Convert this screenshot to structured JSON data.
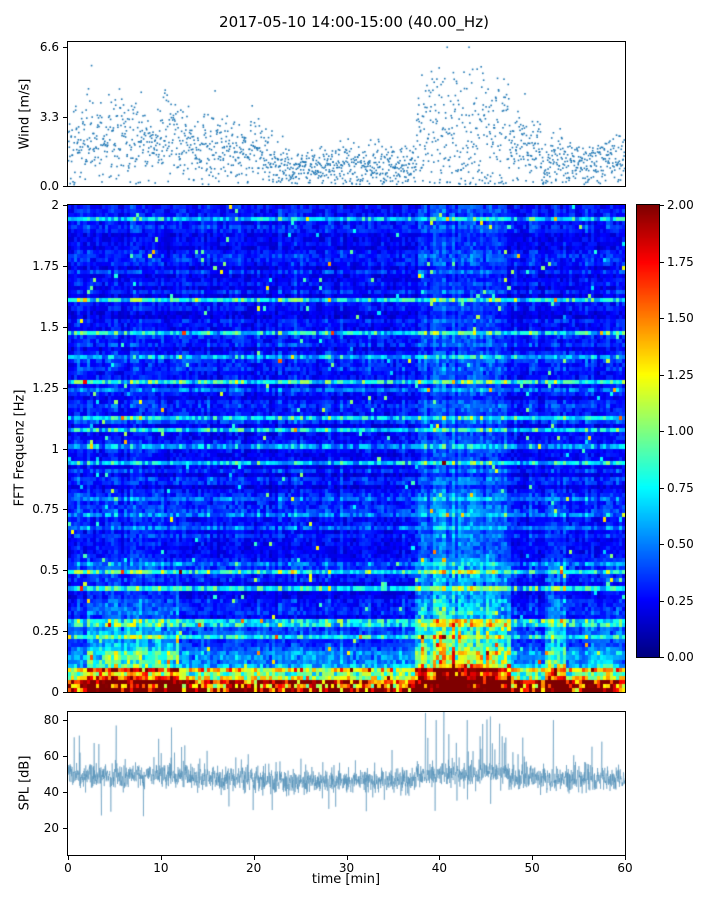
{
  "title": "2017-05-10 14:00-15:00 (40.00_Hz)",
  "figure": {
    "background": "#ffffff",
    "font_color": "#000000"
  },
  "chart_data": [
    {
      "type": "scatter",
      "id": "wind",
      "ylabel": "Wind [m/s]",
      "xlim": [
        0,
        60
      ],
      "ylim": [
        0,
        6.85
      ],
      "yticks": [
        0.0,
        3.3,
        6.6
      ],
      "ytick_labels": [
        "0.0",
        "3.3",
        "6.6"
      ],
      "marker_color": "#1f77b4",
      "marker_size": 1.6,
      "n_points": 1750,
      "seed": 7,
      "peak_time": 43.2,
      "peak_value": 6.6,
      "segments": [
        {
          "t0": 0,
          "t1": 13,
          "mean": 2.2,
          "spread": 1.0
        },
        {
          "t0": 13,
          "t1": 22,
          "mean": 1.6,
          "spread": 0.85
        },
        {
          "t0": 22,
          "t1": 37.5,
          "mean": 0.95,
          "spread": 0.5
        },
        {
          "t0": 37.5,
          "t1": 47.5,
          "mean": 2.6,
          "spread": 1.6
        },
        {
          "t0": 47.5,
          "t1": 51,
          "mean": 1.9,
          "spread": 0.9
        },
        {
          "t0": 51,
          "t1": 60,
          "mean": 1.15,
          "spread": 0.6
        }
      ]
    },
    {
      "type": "heatmap",
      "id": "spectrogram",
      "ylabel": "FFT Frequenz [Hz]",
      "xlim": [
        0,
        60
      ],
      "ylim": [
        0,
        2
      ],
      "yticks": [
        0,
        0.25,
        0.5,
        0.75,
        1,
        1.25,
        1.5,
        1.75,
        2
      ],
      "ytick_labels": [
        "0",
        "0.25",
        "0.5",
        "0.75",
        "1",
        "1.25",
        "1.5",
        "1.75",
        "2"
      ],
      "colormap": "jet",
      "vmin": 0,
      "vmax": 2,
      "grid": {
        "nx": 180,
        "ny": 120
      },
      "seed": 11,
      "background_level": [
        0.17,
        0.37
      ],
      "streak_probability": 0.16,
      "low_freq_boost": {
        "amplitude": 2.0,
        "freq_scale": 0.07
      },
      "events": [
        {
          "t0": 2,
          "t1": 12,
          "strength": 0.85,
          "freq_scale": 0.22
        },
        {
          "t0": 37.5,
          "t1": 47.5,
          "strength": 1.45,
          "freq_scale": 0.28
        },
        {
          "t0": 51.5,
          "t1": 53.5,
          "strength": 0.8,
          "freq_scale": 0.3
        },
        {
          "t0": 56,
          "t1": 59.5,
          "strength": 0.45,
          "freq_scale": 0.15
        }
      ]
    },
    {
      "type": "line",
      "id": "spl",
      "ylabel": "SPL [dB]",
      "xlabel": "time [min]",
      "xlim": [
        0,
        60
      ],
      "ylim": [
        5,
        84.5
      ],
      "yticks": [
        20,
        40,
        60,
        80
      ],
      "ytick_labels": [
        "20",
        "40",
        "60",
        "80"
      ],
      "xticks": [
        0,
        10,
        20,
        30,
        40,
        50,
        60
      ],
      "xtick_labels": [
        "0",
        "10",
        "20",
        "30",
        "40",
        "50",
        "60"
      ],
      "line_color": "#4a8ab5",
      "line_alpha": 0.75,
      "baseline": 46,
      "noise": 3.2,
      "n_points": 2600,
      "seed": 23,
      "spikes": [
        {
          "t": 5.2,
          "value": 77
        },
        {
          "t": 38.5,
          "value": 84
        },
        {
          "t": 40.5,
          "value": 85
        },
        {
          "t": 43.0,
          "value": 80
        },
        {
          "t": 45.5,
          "value": 82
        },
        {
          "t": 46.5,
          "value": 78
        },
        {
          "t": 52.3,
          "value": 80
        },
        {
          "t": 57.5,
          "value": 68
        }
      ],
      "dips": [
        {
          "t": 3.6,
          "value": 27
        },
        {
          "t": 22.0,
          "value": 30
        }
      ]
    }
  ],
  "colorbar": {
    "colormap": "jet",
    "vmin": 0,
    "vmax": 2,
    "tick_values": [
      0,
      0.25,
      0.5,
      0.75,
      1,
      1.25,
      1.5,
      1.75,
      2
    ],
    "tick_labels": [
      "0.00",
      "0.25",
      "0.50",
      "0.75",
      "1.00",
      "1.25",
      "1.50",
      "1.75",
      "2.00"
    ]
  }
}
